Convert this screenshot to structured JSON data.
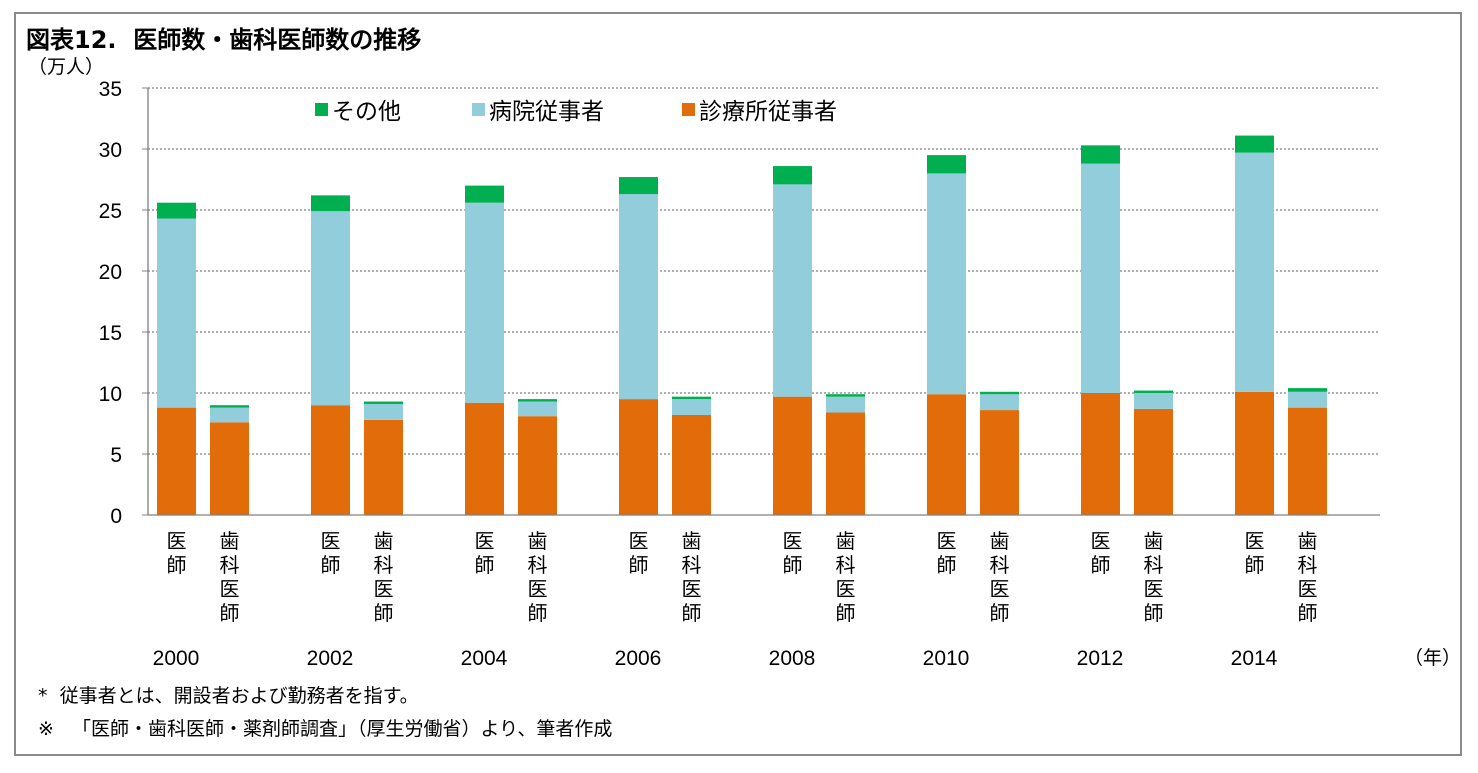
{
  "title": "図表12.  医師数・歯科医師数の推移",
  "y_unit": "（万人）",
  "x_unit": "（年）",
  "notes": [
    "*  従事者とは、開設者および勤務者を指す。",
    "※   「医師・歯科医師・薬剤師調査」（厚生労働省）より、筆者作成"
  ],
  "colors": {
    "診療所従事者": "#e36c0a",
    "病院従事者": "#92cddc",
    "その他": "#00b050",
    "grid": "#7f7f7f",
    "axis": "#808080"
  },
  "chart_data": {
    "type": "bar",
    "stacked": true,
    "title": "医師数・歯科医師数の推移",
    "ylabel": "（万人）",
    "xlabel": "（年）",
    "ylim": [
      0,
      35
    ],
    "yticks": [
      0,
      5,
      10,
      15,
      20,
      25,
      30,
      35
    ],
    "grid": true,
    "legend": {
      "position": "top-left",
      "order": [
        "その他",
        "病院従事者",
        "診療所従事者"
      ]
    },
    "groups": [
      "2000",
      "2002",
      "2004",
      "2006",
      "2008",
      "2010",
      "2012",
      "2014"
    ],
    "bar_labels": [
      "医師",
      "歯科医師"
    ],
    "series": [
      {
        "name": "診療所従事者",
        "values": [
          [
            8.8,
            7.6
          ],
          [
            9.0,
            7.8
          ],
          [
            9.2,
            8.1
          ],
          [
            9.5,
            8.2
          ],
          [
            9.7,
            8.4
          ],
          [
            9.9,
            8.6
          ],
          [
            10.0,
            8.7
          ],
          [
            10.1,
            8.8
          ]
        ]
      },
      {
        "name": "病院従事者",
        "values": [
          [
            15.5,
            1.2
          ],
          [
            15.9,
            1.3
          ],
          [
            16.4,
            1.2
          ],
          [
            16.8,
            1.3
          ],
          [
            17.4,
            1.3
          ],
          [
            18.1,
            1.3
          ],
          [
            18.8,
            1.3
          ],
          [
            19.6,
            1.3
          ]
        ]
      },
      {
        "name": "その他",
        "values": [
          [
            1.3,
            0.2
          ],
          [
            1.3,
            0.2
          ],
          [
            1.4,
            0.2
          ],
          [
            1.4,
            0.2
          ],
          [
            1.5,
            0.2
          ],
          [
            1.5,
            0.2
          ],
          [
            1.5,
            0.2
          ],
          [
            1.4,
            0.3
          ]
        ]
      }
    ]
  }
}
